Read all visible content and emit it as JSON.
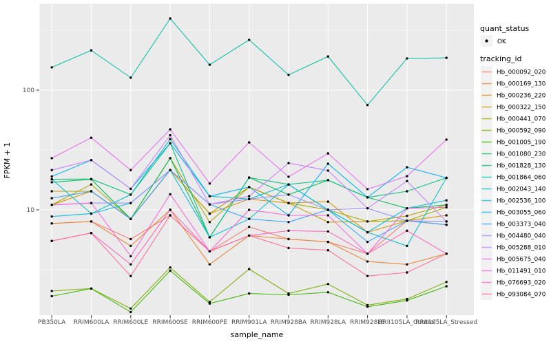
{
  "figure": {
    "legend": {
      "quant_status_title": "quant_status",
      "ok_label": "OK",
      "tracking_id_title": "tracking_id"
    },
    "style": {
      "panel_bg": "#EBEBEB",
      "grid_color": "#FFFFFF",
      "tick_color": "#333333",
      "tick_label_color": "#4D4D4D",
      "point_color": "#000000",
      "legend_key_bg": "#F2F2F2"
    }
  },
  "chart_data": {
    "type": "line",
    "title": "",
    "xlabel": "sample_name",
    "ylabel": "FPKM + 1",
    "y_scale": "log10",
    "ylim": [
      1.3,
      510
    ],
    "y_major_ticks": [
      10,
      100
    ],
    "y_minor_ticks": [
      3.162,
      31.62,
      316.2
    ],
    "legend_position": "right",
    "point_marker": "black dot (quant_status OK)",
    "categories": [
      "PB350LA",
      "RRIM600LA",
      "RRIM600LE",
      "RRIM600SE",
      "RRIM600PE",
      "RRIM901LA",
      "RRIM928BA",
      "RRIM928LA",
      "RRIM928LE",
      "RRII105LA_Control",
      "RRII105LA_Stressed"
    ],
    "series": [
      {
        "name": "Hb_000092_020",
        "color": "#F8766D",
        "values": [
          7.7,
          8.0,
          5.7,
          9.0,
          4.5,
          7.2,
          5.7,
          5.4,
          4.3,
          8.1,
          7.5
        ]
      },
      {
        "name": "Hb_000169_130",
        "color": "#EA8331",
        "values": [
          7.7,
          8.0,
          5.0,
          10.0,
          3.5,
          6.1,
          5.7,
          5.4,
          3.7,
          3.5,
          4.3
        ]
      },
      {
        "name": "Hb_000236_220",
        "color": "#D89000",
        "values": [
          11.0,
          14.3,
          8.4,
          21.5,
          9.3,
          12.3,
          11.4,
          11.7,
          6.5,
          8.1,
          9.0
        ]
      },
      {
        "name": "Hb_000322_150",
        "color": "#C09B00",
        "values": [
          14.3,
          14.3,
          8.4,
          21.5,
          9.3,
          15.5,
          11.4,
          7.9,
          8.0,
          8.9,
          11.0
        ]
      },
      {
        "name": "Hb_000441_070",
        "color": "#A3A500",
        "values": [
          11.0,
          16.3,
          8.4,
          27.0,
          7.9,
          15.5,
          11.4,
          10.0,
          8.0,
          8.1,
          10.5
        ]
      },
      {
        "name": "Hb_000592_090",
        "color": "#7CAE00",
        "values": [
          2.1,
          2.2,
          1.5,
          3.3,
          1.7,
          3.2,
          2.0,
          2.4,
          1.6,
          1.8,
          2.5
        ]
      },
      {
        "name": "Hb_001005_190",
        "color": "#39B600",
        "values": [
          1.9,
          2.2,
          1.4,
          3.1,
          1.65,
          2.0,
          1.95,
          2.05,
          1.55,
          1.75,
          2.3
        ]
      },
      {
        "name": "Hb_001080_230",
        "color": "#00BB4E",
        "values": [
          17.0,
          18.0,
          8.4,
          27.0,
          5.9,
          18.6,
          13.4,
          17.7,
          12.7,
          10.3,
          11.0
        ]
      },
      {
        "name": "Hb_001828_130",
        "color": "#00BF7D",
        "values": [
          18.0,
          18.1,
          13.4,
          36.0,
          5.9,
          18.6,
          16.3,
          17.7,
          12.7,
          14.3,
          18.5
        ]
      },
      {
        "name": "Hb_001864_060",
        "color": "#00C1A3",
        "values": [
          155,
          215,
          127,
          396,
          163,
          263,
          134,
          191,
          75,
          184,
          186
        ]
      },
      {
        "name": "Hb_002043_140",
        "color": "#00BFC4",
        "values": [
          18.0,
          9.3,
          13.4,
          39.0,
          13.0,
          12.3,
          16.3,
          10.0,
          6.5,
          5.0,
          18.5
        ]
      },
      {
        "name": "Hb_002536_100",
        "color": "#00BAE0",
        "values": [
          8.8,
          9.3,
          11.4,
          21.5,
          5.9,
          8.4,
          16.3,
          10.0,
          6.5,
          10.3,
          12.0
        ]
      },
      {
        "name": "Hb_003055_060",
        "color": "#00B0F6",
        "values": [
          19.0,
          26.0,
          15.0,
          36.0,
          13.0,
          15.5,
          9.0,
          24.3,
          12.7,
          22.7,
          18.5
        ]
      },
      {
        "name": "Hb_003373_040",
        "color": "#35A2FF",
        "values": [
          12.5,
          14.3,
          8.4,
          21.5,
          11.1,
          8.4,
          7.9,
          10.0,
          5.4,
          8.1,
          7.5
        ]
      },
      {
        "name": "Hb_004480_040",
        "color": "#9590FF",
        "values": [
          11.0,
          11.4,
          11.4,
          21.5,
          11.1,
          12.3,
          13.4,
          10.0,
          10.3,
          8.1,
          8.0
        ]
      },
      {
        "name": "Hb_005288_010",
        "color": "#C77CFF",
        "values": [
          21.5,
          26.0,
          15.0,
          42.0,
          11.1,
          13.0,
          24.6,
          21.3,
          10.3,
          17.4,
          8.0
        ]
      },
      {
        "name": "Hb_005675_040",
        "color": "#E76BF3",
        "values": [
          27.0,
          40.0,
          21.5,
          47.0,
          16.6,
          36.6,
          18.9,
          29.6,
          14.9,
          19.1,
          38.6
        ]
      },
      {
        "name": "Hb_011491_010",
        "color": "#FA62DB",
        "values": [
          11.0,
          11.4,
          4.1,
          13.5,
          4.5,
          10.0,
          9.0,
          9.0,
          4.3,
          10.3,
          10.5
        ]
      },
      {
        "name": "Hb_076693_020",
        "color": "#FF62BC",
        "values": [
          5.5,
          6.4,
          3.5,
          10.0,
          4.5,
          6.1,
          6.7,
          6.6,
          4.3,
          6.7,
          4.3
        ]
      },
      {
        "name": "Hb_093084_070",
        "color": "#FF6A98",
        "values": [
          5.5,
          6.4,
          2.8,
          9.0,
          4.5,
          6.1,
          4.8,
          4.6,
          2.8,
          3.0,
          4.3
        ]
      }
    ]
  }
}
